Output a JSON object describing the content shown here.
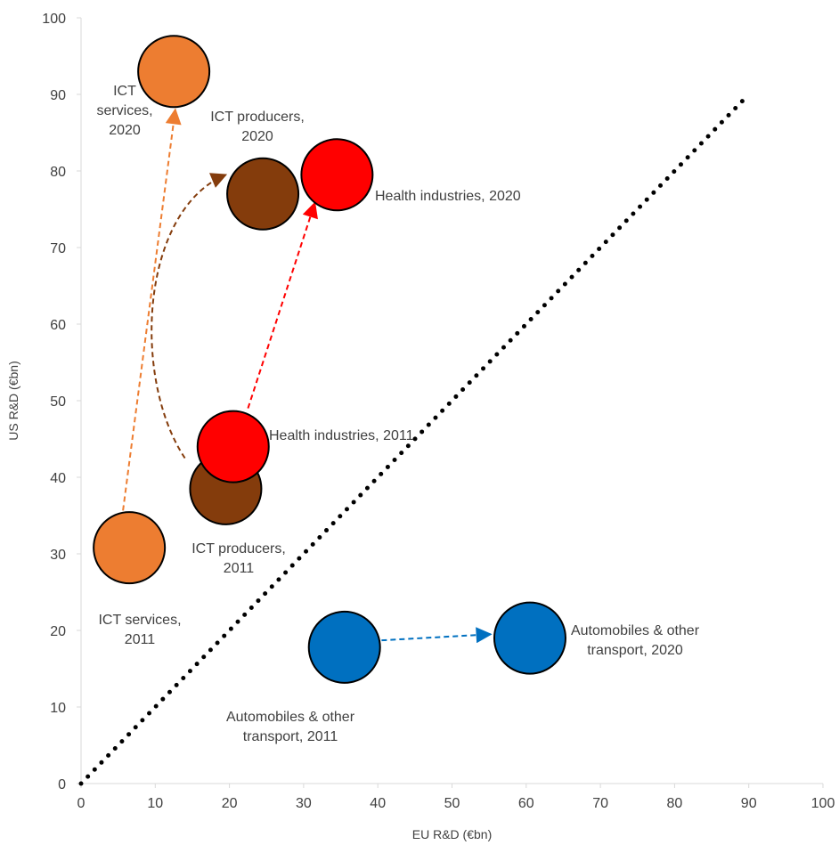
{
  "chart_data": {
    "type": "scatter",
    "xlabel": "EU R&D (€bn)",
    "ylabel": "US R&D (€bn)",
    "xlim": [
      0,
      100
    ],
    "ylim": [
      0,
      100
    ],
    "x_ticks": [
      "0",
      "10",
      "20",
      "30",
      "40",
      "50",
      "60",
      "70",
      "80",
      "90",
      "100"
    ],
    "y_ticks": [
      "0",
      "10",
      "20",
      "30",
      "40",
      "50",
      "60",
      "70",
      "80",
      "90",
      "100"
    ],
    "grid": false,
    "legend": "none",
    "reference_line": {
      "from": [
        0,
        0
      ],
      "to": [
        90,
        90
      ],
      "style": "dotted",
      "color": "#000000"
    },
    "points": [
      {
        "x": 6.5,
        "y": 30.8,
        "color": "#ED7D31",
        "label": [
          "ICT services,",
          "2011"
        ]
      },
      {
        "x": 12.5,
        "y": 93.0,
        "color": "#ED7D31",
        "label": [
          "ICT",
          "services,",
          "2020"
        ]
      },
      {
        "x": 19.5,
        "y": 38.5,
        "color": "#843C0C",
        "label": [
          "ICT producers,",
          "2011"
        ]
      },
      {
        "x": 24.5,
        "y": 77.0,
        "color": "#843C0C",
        "label": [
          "ICT producers,",
          "2020"
        ]
      },
      {
        "x": 20.5,
        "y": 44.0,
        "color": "#FF0000",
        "label": [
          "Health industries, 2011"
        ]
      },
      {
        "x": 34.5,
        "y": 79.5,
        "color": "#FF0000",
        "label": [
          "Health industries, 2020"
        ]
      },
      {
        "x": 35.5,
        "y": 17.8,
        "color": "#0070C0",
        "label": [
          "Automobiles & other",
          "transport, 2011"
        ]
      },
      {
        "x": 60.5,
        "y": 19.0,
        "color": "#0070C0",
        "label": [
          "Automobiles & other",
          "transport, 2020"
        ]
      }
    ],
    "arrows": [
      {
        "from": [
          5.5,
          34.5
        ],
        "to": [
          12.7,
          88.0
        ],
        "color": "#ED7D31",
        "curve": false
      },
      {
        "from": [
          14.0,
          42.5
        ],
        "to": [
          19.5,
          79.5
        ],
        "color": "#843C0C",
        "curve": true
      },
      {
        "from": [
          22.5,
          49.0
        ],
        "to": [
          31.5,
          75.8
        ],
        "color": "#FF0000",
        "curve": false
      },
      {
        "from": [
          40.5,
          18.7
        ],
        "to": [
          55.2,
          19.5
        ],
        "color": "#0070C0",
        "curve": false
      }
    ]
  }
}
